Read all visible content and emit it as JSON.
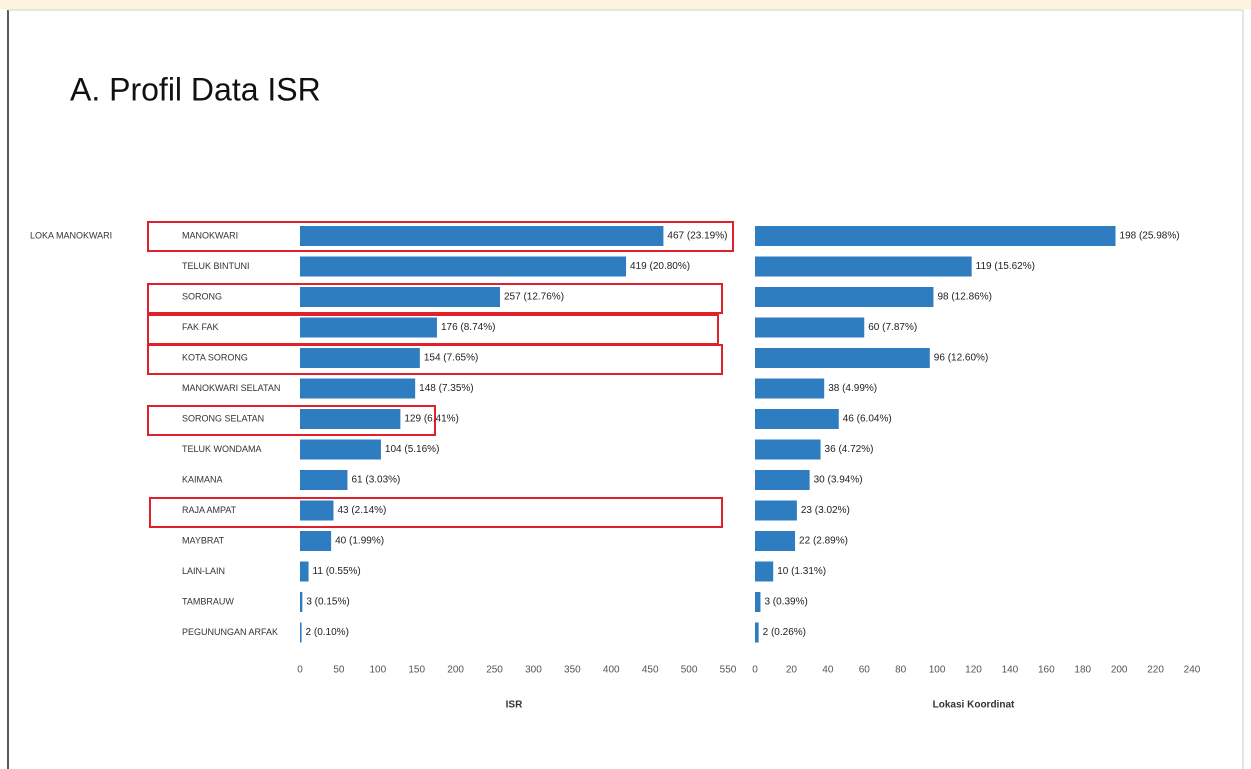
{
  "title": "A. Profil Data ISR",
  "row_group_label": "LOKA MANOKWARI",
  "chart_data": [
    {
      "type": "hbar",
      "color": "#2f7dc1",
      "categories": [
        "MANOKWARI",
        "TELUK BINTUNI",
        "SORONG",
        "FAK FAK",
        "KOTA SORONG",
        "MANOKWARI SELATAN",
        "SORONG SELATAN",
        "TELUK WONDAMA",
        "KAIMANA",
        "RAJA AMPAT",
        "MAYBRAT",
        "LAIN-LAIN",
        "TAMBRAUW",
        "PEGUNUNGAN ARFAK"
      ],
      "values": [
        467,
        419,
        257,
        176,
        154,
        148,
        129,
        104,
        61,
        43,
        40,
        11,
        3,
        2
      ],
      "value_labels": [
        "467 (23.19%)",
        "419 (20.80%)",
        "257 (12.76%)",
        "176 (8.74%)",
        "154 (7.65%)",
        "148 (7.35%)",
        "129 (6.41%)",
        "104 (5.16%)",
        "61 (3.03%)",
        "43 (2.14%)",
        "40 (1.99%)",
        "11 (0.55%)",
        "3 (0.15%)",
        "2 (0.10%)"
      ],
      "xlim": [
        0,
        550
      ],
      "xticks": [
        0,
        50,
        100,
        150,
        200,
        250,
        300,
        350,
        400,
        450,
        500,
        550
      ],
      "xlabel": "ISR"
    },
    {
      "type": "hbar",
      "color": "#2f7dc1",
      "values": [
        198,
        119,
        98,
        60,
        96,
        38,
        46,
        36,
        30,
        23,
        22,
        10,
        3,
        2
      ],
      "value_labels": [
        "198 (25.98%)",
        "119 (15.62%)",
        "98 (12.86%)",
        "60 (7.87%)",
        "96 (12.60%)",
        "38 (4.99%)",
        "46 (6.04%)",
        "36 (4.72%)",
        "30 (3.94%)",
        "23 (3.02%)",
        "22 (2.89%)",
        "10 (1.31%)",
        "3 (0.39%)",
        "2 (0.26%)"
      ],
      "xlim": [
        0,
        240
      ],
      "xticks": [
        0,
        20,
        40,
        60,
        80,
        100,
        120,
        140,
        160,
        180,
        200,
        220,
        240
      ],
      "xlabel": "Lokasi Koordinat"
    }
  ]
}
